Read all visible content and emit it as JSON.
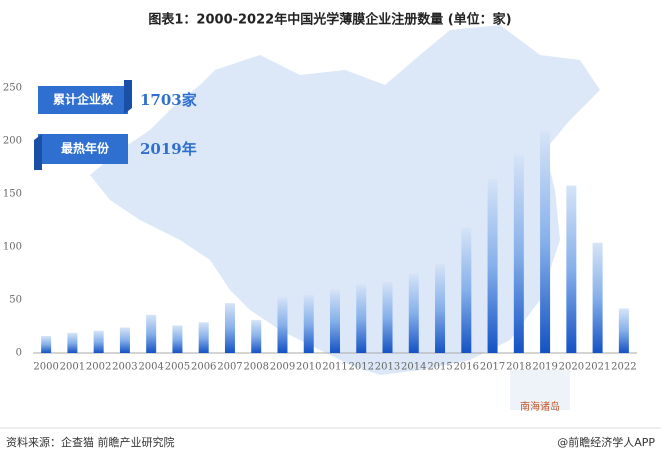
{
  "chart_data": {
    "type": "bar",
    "title": "图表1：2000-2022年中国光学薄膜企业注册数量 (单位：家)",
    "categories": [
      "2000",
      "2001",
      "2002",
      "2003",
      "2004",
      "2005",
      "2006",
      "2007",
      "2008",
      "2009",
      "2010",
      "2011",
      "2012",
      "2013",
      "2014",
      "2015",
      "2016",
      "2017",
      "2018",
      "2019",
      "2020",
      "2021",
      "2022"
    ],
    "values": [
      16,
      19,
      21,
      24,
      36,
      26,
      29,
      47,
      31,
      53,
      55,
      60,
      65,
      67,
      75,
      84,
      118,
      164,
      187,
      209,
      158,
      104,
      42
    ],
    "color": "#1a5fc8",
    "ylim": [
      0,
      250
    ],
    "yticks": [
      0,
      50,
      100,
      150,
      200,
      250
    ],
    "grid": false,
    "annotations": [
      {
        "label": "累计企业数",
        "value": "1703家"
      },
      {
        "label": "最热年份",
        "value": "2019年"
      }
    ],
    "map_label": "南海诸岛",
    "source": "资料来源：企查猫 前瞻产业研究院",
    "brand": "@前瞻经济学人APP"
  }
}
